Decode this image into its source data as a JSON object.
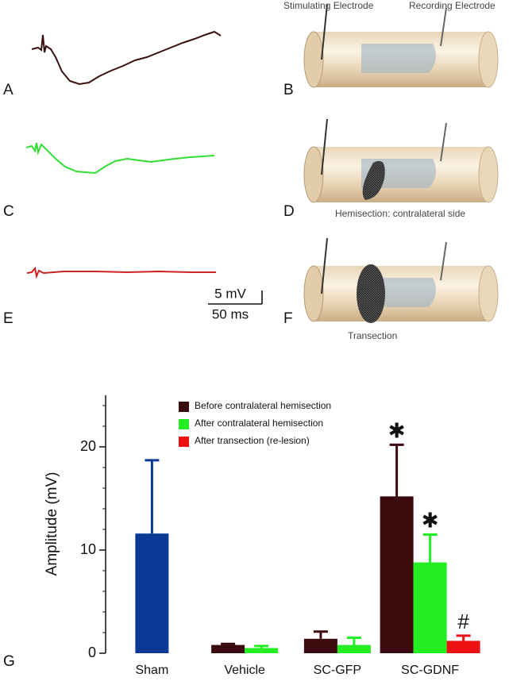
{
  "figure": {
    "panel_labels": [
      "A",
      "B",
      "C",
      "D",
      "E",
      "F",
      "G"
    ],
    "electrodes": [
      "Stimulating Electrode",
      "Recording Electrode"
    ],
    "captions": [
      "Hemisection: contralateral side",
      "Transection"
    ],
    "scale_bar": [
      "5 mV",
      "50 ms"
    ]
  },
  "chart_data": {
    "type": "bar",
    "y_label": "Amplitude (mV)",
    "categories": [
      "Sham",
      "Vehicle",
      "SC-GFP",
      "SC-GDNF"
    ],
    "series": [
      {
        "name": "Before contralateral hemisection",
        "color": "#3a0a0c",
        "colors": [
          "#0a3a96",
          "#3a0a0c",
          "#3a0a0c",
          "#3a0a0c"
        ],
        "values": [
          11.6,
          0.8,
          1.4,
          15.2
        ],
        "errors": [
          7.1,
          0.1,
          0.7,
          5.0
        ],
        "marks": [
          null,
          null,
          null,
          "✱"
        ]
      },
      {
        "name": "After contralateral hemisection",
        "color": "#22ee22",
        "values": [
          null,
          0.5,
          0.8,
          8.8
        ],
        "errors": [
          null,
          0.2,
          0.7,
          2.7
        ],
        "marks": [
          null,
          null,
          null,
          "✱"
        ]
      },
      {
        "name": "After transection (re-lesion)",
        "color": "#ee1111",
        "values": [
          null,
          null,
          null,
          1.2
        ],
        "errors": [
          null,
          null,
          null,
          0.5
        ],
        "marks": [
          null,
          null,
          null,
          "#"
        ]
      }
    ],
    "ylim": [
      0,
      25
    ],
    "yticks": [
      0,
      10,
      20
    ],
    "yminorticks": [
      2,
      4,
      6,
      8,
      12,
      14,
      16,
      18,
      22,
      24
    ]
  }
}
